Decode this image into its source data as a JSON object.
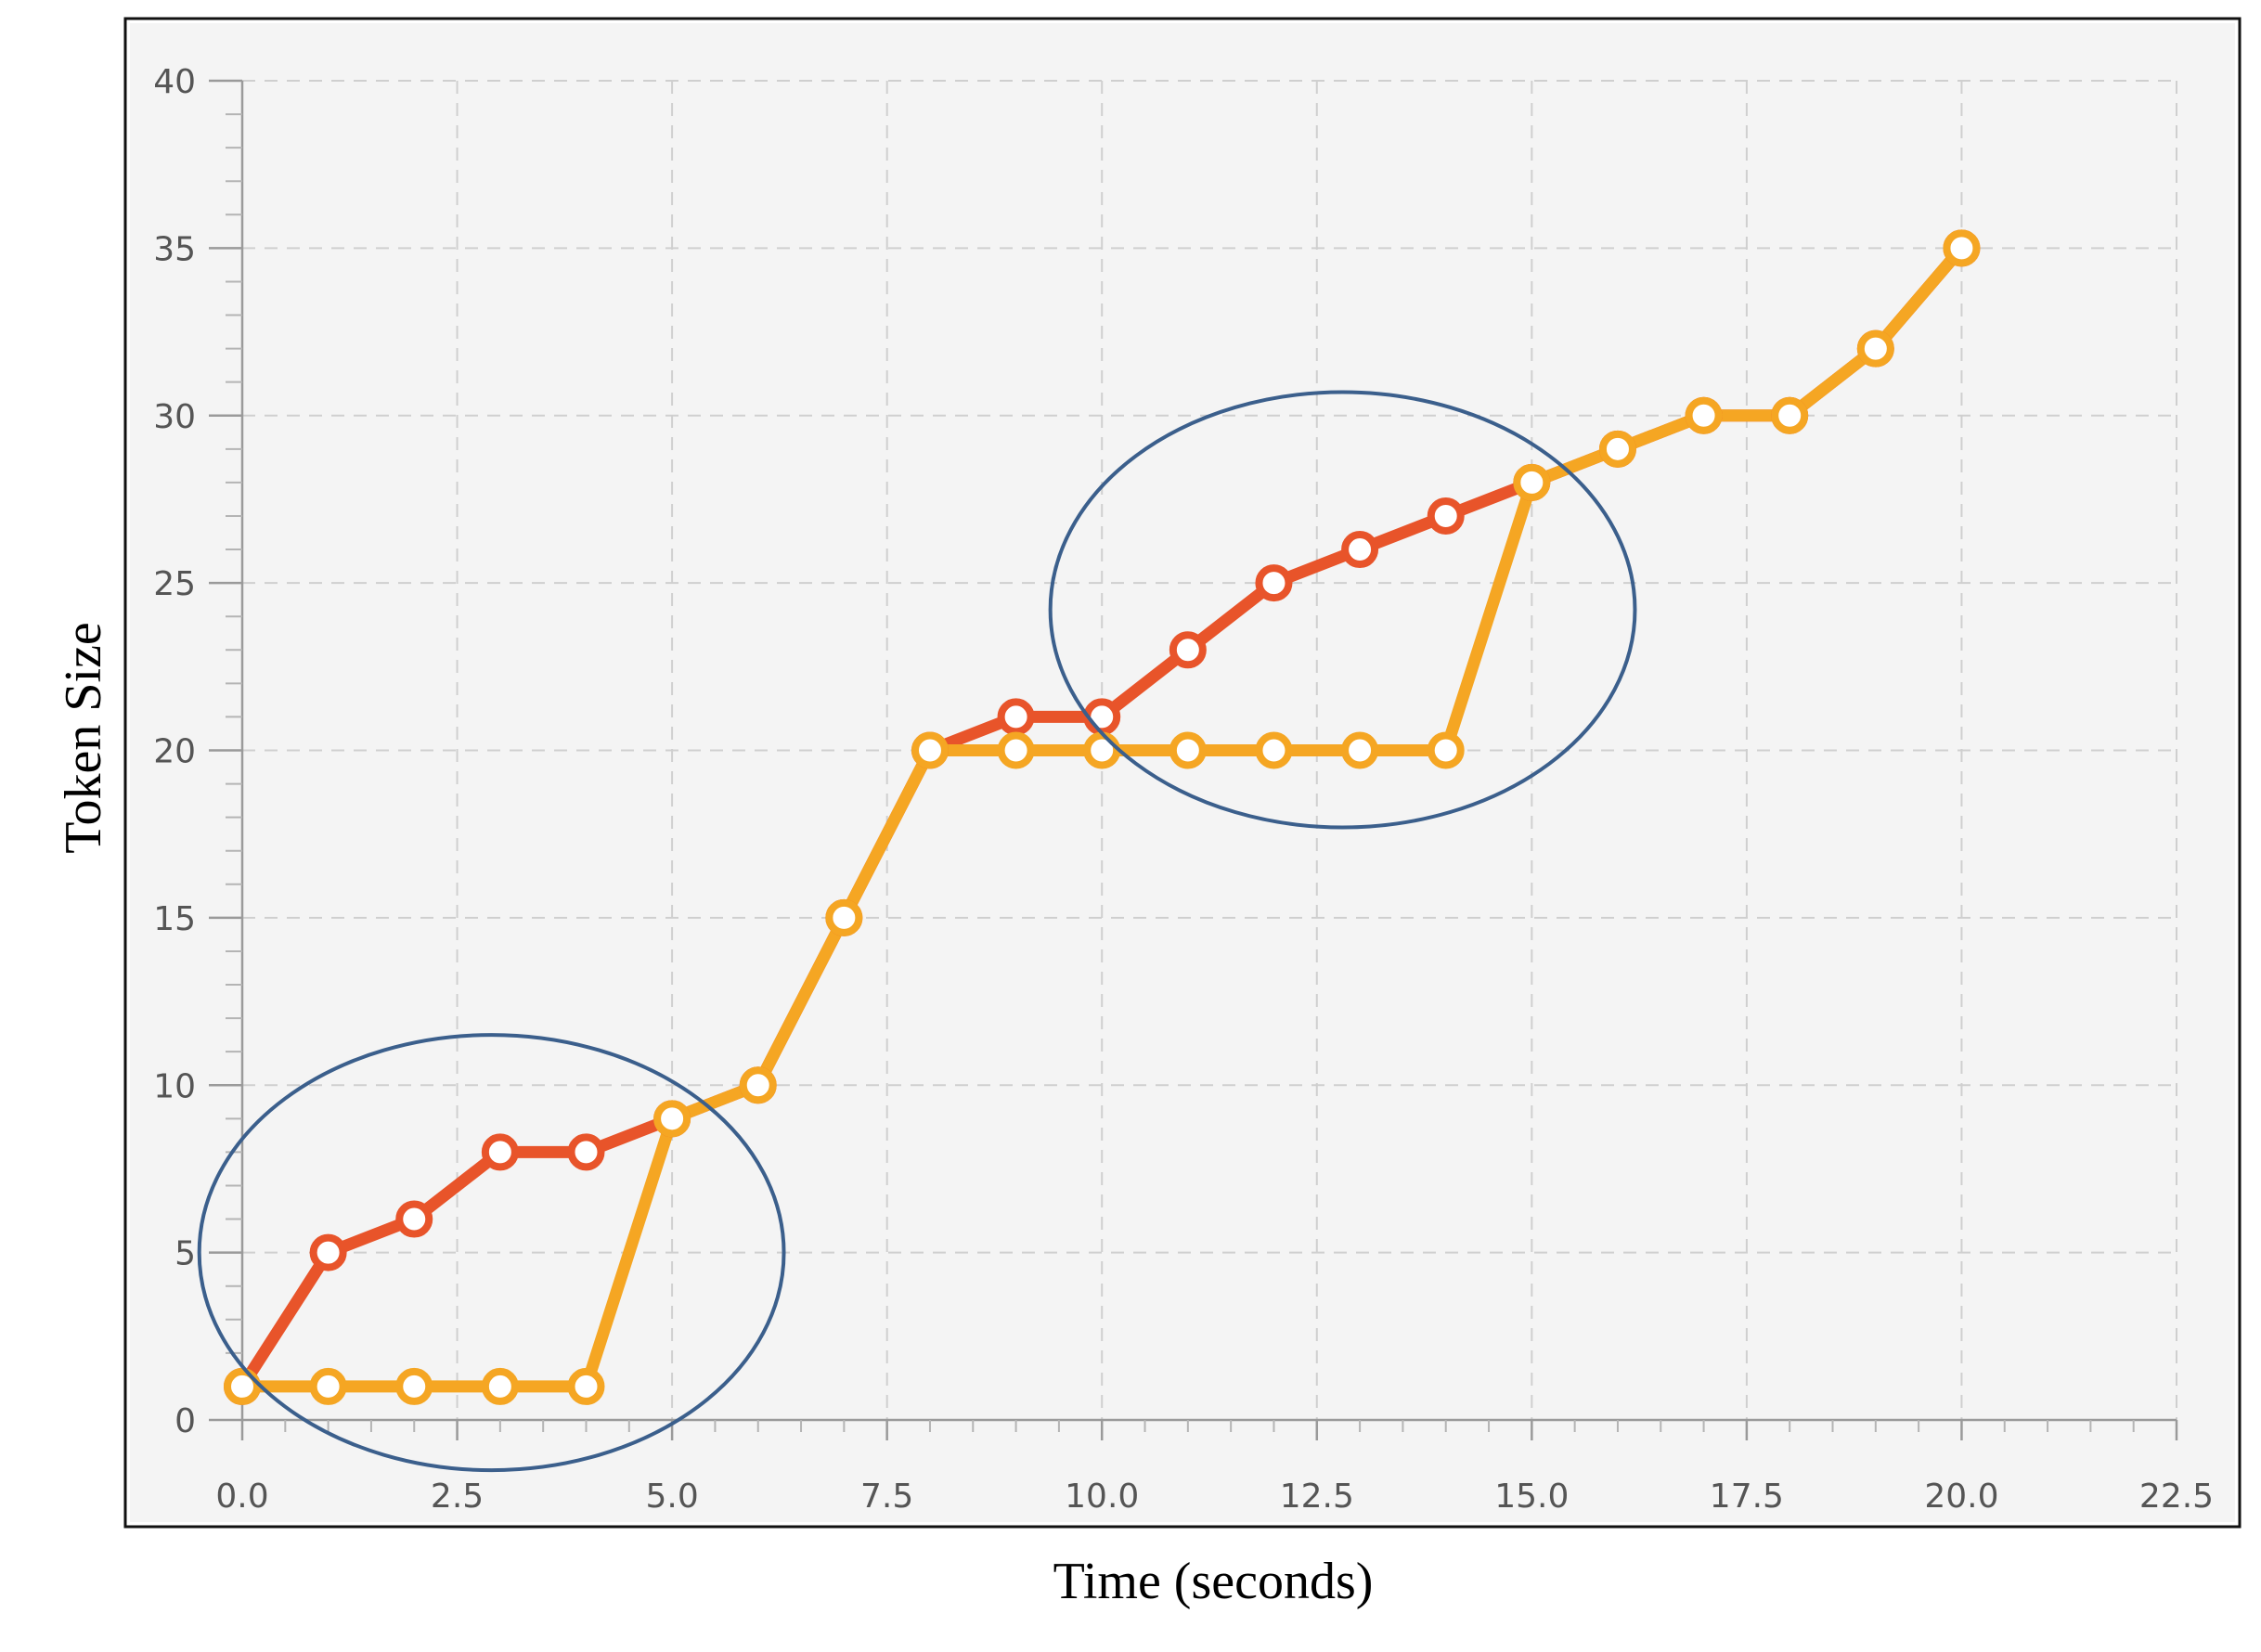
{
  "chart_data": {
    "type": "line",
    "title": "",
    "xlabel": "Time (seconds)",
    "ylabel": "Token Size",
    "xlim": [
      0,
      22.5
    ],
    "ylim": [
      0,
      40
    ],
    "xticks": [
      "0.0",
      "2.5",
      "5.0",
      "7.5",
      "10.0",
      "12.5",
      "15.0",
      "17.5",
      "20.0",
      "22.5"
    ],
    "yticks": [
      "0",
      "5",
      "10",
      "15",
      "20",
      "25",
      "30",
      "35",
      "40"
    ],
    "grid": true,
    "series": [
      {
        "color": "#e8542a",
        "x": [
          0,
          1,
          2,
          3,
          4,
          5,
          6,
          7,
          8,
          9,
          10,
          11,
          12,
          13,
          14,
          15,
          16,
          17,
          18,
          19,
          20
        ],
        "y": [
          1,
          5,
          6,
          8,
          8,
          9,
          10,
          15,
          20,
          21,
          21,
          23,
          25,
          26,
          27,
          28,
          29,
          30,
          30,
          32,
          35
        ]
      },
      {
        "color": "#f5a623",
        "x": [
          0,
          1,
          2,
          3,
          4,
          5,
          6,
          7,
          8,
          9,
          10,
          11,
          12,
          13,
          14,
          15,
          16,
          17,
          18,
          19,
          20
        ],
        "y": [
          1,
          1,
          1,
          1,
          1,
          9,
          10,
          15,
          20,
          20,
          20,
          20,
          20,
          20,
          20,
          28,
          29,
          30,
          30,
          32,
          35
        ]
      }
    ],
    "annotations": [
      {
        "type": "ellipse",
        "color": "#3b5f8c",
        "center": [
          2.9,
          5.0
        ],
        "radius": [
          3.4,
          6.5
        ]
      },
      {
        "type": "ellipse",
        "color": "#3b5f8c",
        "center": [
          12.8,
          24.2
        ],
        "radius": [
          3.4,
          6.5
        ]
      }
    ]
  }
}
